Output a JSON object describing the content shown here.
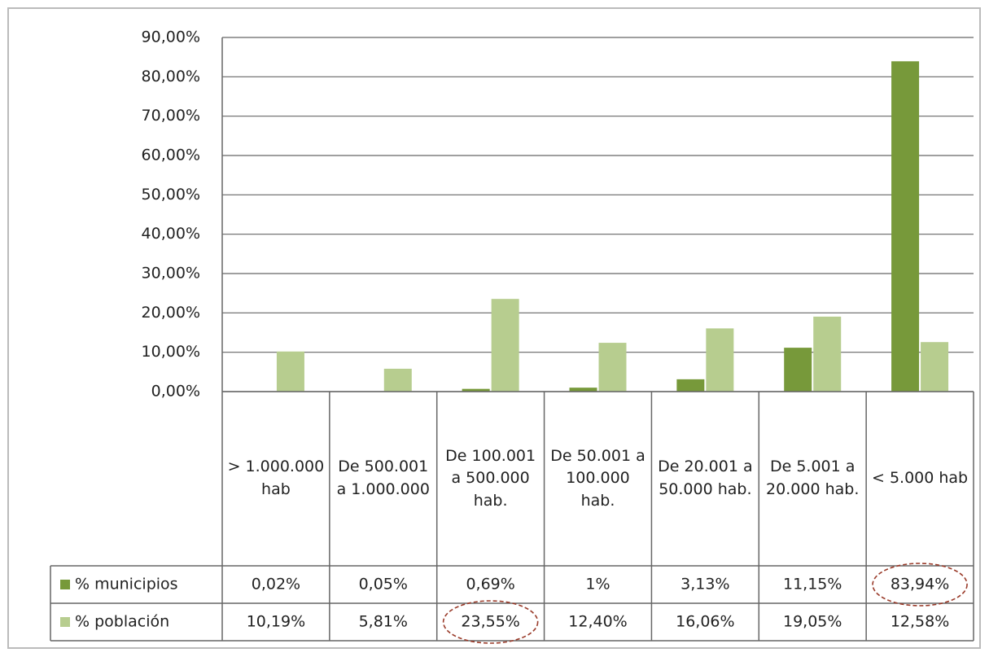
{
  "chart_data": {
    "type": "bar",
    "categories": [
      "> 1.000.000 hab",
      "De 500.001 a 1.000.000",
      "De 100.001 a 500.000 hab.",
      "De 50.001 a 100.000 hab.",
      "De 20.001 a 50.000 hab.",
      "De 5.001 a 20.000 hab.",
      "< 5.000 hab"
    ],
    "series": [
      {
        "name": "% municipios",
        "color": "#77993a",
        "values": [
          0.02,
          0.05,
          0.69,
          1,
          3.13,
          11.15,
          83.94
        ],
        "value_labels": [
          "0,02%",
          "0,05%",
          "0,69%",
          "1%",
          "3,13%",
          "11,15%",
          "83,94%"
        ]
      },
      {
        "name": "% población",
        "color": "#b7cd8f",
        "values": [
          10.19,
          5.81,
          23.55,
          12.4,
          16.06,
          19.05,
          12.58
        ],
        "value_labels": [
          "10,19%",
          "5,81%",
          "23,55%",
          "12,40%",
          "16,06%",
          "19,05%",
          "12,58%"
        ]
      }
    ],
    "ylim": [
      0,
      90
    ],
    "yticks": [
      {
        "value": 0,
        "label": "0,00%"
      },
      {
        "value": 10,
        "label": "10,00%"
      },
      {
        "value": 20,
        "label": "20,00%"
      },
      {
        "value": 30,
        "label": "30,00%"
      },
      {
        "value": 40,
        "label": "40,00%"
      },
      {
        "value": 50,
        "label": "50,00%"
      },
      {
        "value": 60,
        "label": "60,00%"
      },
      {
        "value": 70,
        "label": "70,00%"
      },
      {
        "value": 80,
        "label": "80,00%"
      },
      {
        "value": 90,
        "label": "90,00%"
      }
    ],
    "grid": true
  }
}
